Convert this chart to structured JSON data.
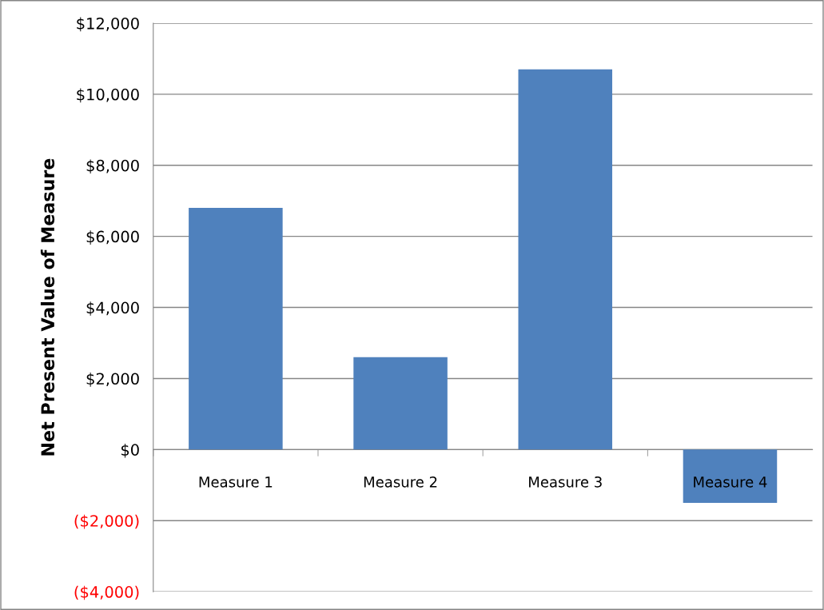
{
  "chart_data": {
    "type": "bar",
    "ylabel": "Net Present Value of Measure",
    "categories": [
      "Measure 1",
      "Measure 2",
      "Measure 3",
      "Measure 4"
    ],
    "values": [
      6800,
      2600,
      10700,
      -1500
    ],
    "color": "#4f81bd",
    "ylim": [
      -4000,
      12000
    ],
    "yticks": [
      {
        "value": -4000,
        "label": "($4,000)"
      },
      {
        "value": -2000,
        "label": "($2,000)"
      },
      {
        "value": 0,
        "label": "$0"
      },
      {
        "value": 2000,
        "label": "$2,000"
      },
      {
        "value": 4000,
        "label": "$4,000"
      },
      {
        "value": 6000,
        "label": "$6,000"
      },
      {
        "value": 8000,
        "label": "$8,000"
      },
      {
        "value": 10000,
        "label": "$10,000"
      },
      {
        "value": 12000,
        "label": "$12,000"
      }
    ],
    "grid": "y",
    "legend": false
  }
}
